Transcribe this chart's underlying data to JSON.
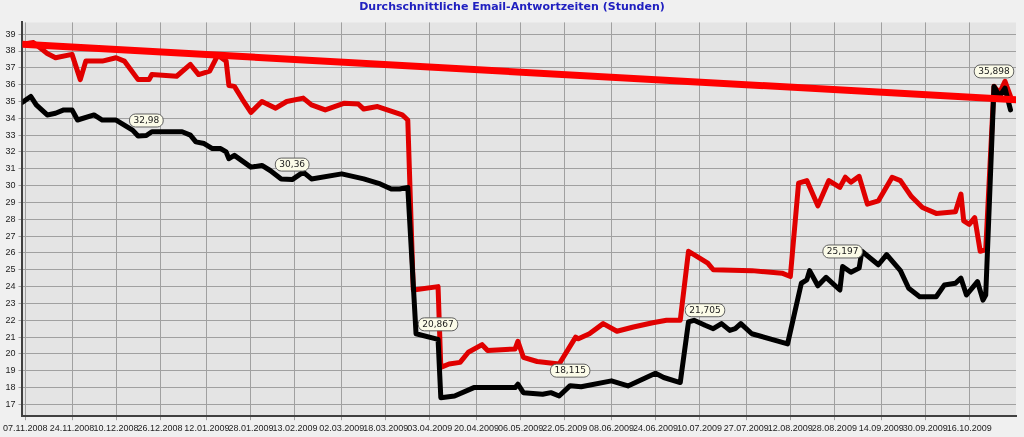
{
  "chart_data": {
    "type": "line",
    "title": "Durchschnittliche Email-Antwortzeiten (Stunden)",
    "xlim": [
      "2008-11-06",
      "2009-11-02"
    ],
    "ylim": [
      16.3,
      39.7
    ],
    "yticks": [
      17,
      18,
      19,
      20,
      21,
      22,
      23,
      24,
      25,
      26,
      27,
      28,
      29,
      30,
      31,
      32,
      33,
      34,
      35,
      36,
      37,
      38,
      39
    ],
    "xticks": [
      {
        "value": "2008-11-07",
        "label": "07.11.2008"
      },
      {
        "value": "2008-11-24",
        "label": "24.11.2008"
      },
      {
        "value": "2008-12-10",
        "label": "10.12.2008"
      },
      {
        "value": "2008-12-26",
        "label": "26.12.2008"
      },
      {
        "value": "2009-01-12",
        "label": "12.01.2009"
      },
      {
        "value": "2009-01-28",
        "label": "28.01.2009"
      },
      {
        "value": "2009-02-13",
        "label": "13.02.2009"
      },
      {
        "value": "2009-03-02",
        "label": "02.03.2009"
      },
      {
        "value": "2009-03-18",
        "label": "18.03.2009"
      },
      {
        "value": "2009-04-03",
        "label": "03.04.2009"
      },
      {
        "value": "2009-04-20",
        "label": "20.04.2009"
      },
      {
        "value": "2009-05-06",
        "label": "06.05.2009"
      },
      {
        "value": "2009-05-22",
        "label": "22.05.2009"
      },
      {
        "value": "2009-06-08",
        "label": "08.06.2009"
      },
      {
        "value": "2009-06-24",
        "label": "24.06.2009"
      },
      {
        "value": "2009-07-10",
        "label": "10.07.2009"
      },
      {
        "value": "2009-07-27",
        "label": "27.07.2009"
      },
      {
        "value": "2009-08-12",
        "label": "12.08.2009"
      },
      {
        "value": "2009-08-28",
        "label": "28.08.2009"
      },
      {
        "value": "2009-09-14",
        "label": "14.09.2009"
      },
      {
        "value": "2009-09-30",
        "label": "30.09.2009"
      },
      {
        "value": "2009-10-16",
        "label": "16.10.2009"
      }
    ],
    "grid": true,
    "legend": false,
    "marker": "none",
    "line_style": "solid",
    "series": [
      {
        "color": "#e00000",
        "x": [
          "2008-11-06",
          "2008-11-10",
          "2008-11-15",
          "2008-11-18",
          "2008-11-24",
          "2008-11-27",
          "2008-11-29",
          "2008-12-05",
          "2008-12-10",
          "2008-12-13",
          "2008-12-18",
          "2008-12-22",
          "2008-12-23",
          "2009-01-01",
          "2009-01-06",
          "2009-01-09",
          "2009-01-13",
          "2009-01-15",
          "2009-01-16",
          "2009-01-19",
          "2009-01-20",
          "2009-01-22",
          "2009-01-25",
          "2009-01-28",
          "2009-02-01",
          "2009-02-06",
          "2009-02-10",
          "2009-02-16",
          "2009-02-19",
          "2009-02-24",
          "2009-03-03",
          "2009-03-08",
          "2009-03-10",
          "2009-03-15",
          "2009-03-24",
          "2009-03-26",
          "2009-03-28",
          "2009-04-06",
          "2009-04-07",
          "2009-04-10",
          "2009-04-14",
          "2009-04-17",
          "2009-04-22",
          "2009-04-24",
          "2009-05-04",
          "2009-05-05",
          "2009-05-07",
          "2009-05-12",
          "2009-05-20",
          "2009-05-26",
          "2009-05-27",
          "2009-05-31",
          "2009-06-05",
          "2009-06-10",
          "2009-06-16",
          "2009-06-23",
          "2009-06-28",
          "2009-07-03",
          "2009-07-06",
          "2009-07-13",
          "2009-07-15",
          "2009-07-29",
          "2009-08-09",
          "2009-08-12",
          "2009-08-15",
          "2009-08-18",
          "2009-08-22",
          "2009-08-26",
          "2009-08-30",
          "2009-09-01",
          "2009-09-03",
          "2009-09-06",
          "2009-09-09",
          "2009-09-13",
          "2009-09-18",
          "2009-09-21",
          "2009-09-25",
          "2009-09-29",
          "2009-10-04",
          "2009-10-11",
          "2009-10-13",
          "2009-10-14",
          "2009-10-16",
          "2009-10-18",
          "2009-10-20",
          "2009-10-22",
          "2009-10-25",
          "2009-10-27",
          "2009-10-29",
          "2009-10-31"
        ],
        "values": [
          38.4,
          38.5,
          37.85,
          37.6,
          37.8,
          36.3,
          37.4,
          37.4,
          37.6,
          37.4,
          36.3,
          36.3,
          36.6,
          36.5,
          37.2,
          36.6,
          36.8,
          37.45,
          37.75,
          37.4,
          35.95,
          35.9,
          35.1,
          34.35,
          35.0,
          34.6,
          35.0,
          35.2,
          34.8,
          34.5,
          34.9,
          34.85,
          34.55,
          34.7,
          34.2,
          33.9,
          23.8,
          24.0,
          19.2,
          19.4,
          19.5,
          20.1,
          20.55,
          20.2,
          20.3,
          20.75,
          19.8,
          19.55,
          19.4,
          21.0,
          20.9,
          21.2,
          21.8,
          21.35,
          21.6,
          21.85,
          22.0,
          22.0,
          26.1,
          25.4,
          25.0,
          24.95,
          24.8,
          24.6,
          30.15,
          30.3,
          28.8,
          30.3,
          29.9,
          30.5,
          30.2,
          30.55,
          28.9,
          29.1,
          30.5,
          30.3,
          29.35,
          28.7,
          28.35,
          28.45,
          29.5,
          27.9,
          27.7,
          28.1,
          26.1,
          26.2,
          35.9,
          35.5,
          36.2,
          35.3
        ]
      },
      {
        "color": "#000000",
        "x": [
          "2008-11-06",
          "2008-11-09",
          "2008-11-11",
          "2008-11-15",
          "2008-11-18",
          "2008-11-21",
          "2008-11-24",
          "2008-11-26",
          "2008-12-02",
          "2008-12-05",
          "2008-12-10",
          "2008-12-16",
          "2008-12-18",
          "2008-12-21",
          "2008-12-23",
          "2009-01-03",
          "2009-01-06",
          "2009-01-08",
          "2009-01-11",
          "2009-01-14",
          "2009-01-17",
          "2009-01-19",
          "2009-01-20",
          "2009-01-22",
          "2009-01-28",
          "2009-02-01",
          "2009-02-04",
          "2009-02-08",
          "2009-02-12",
          "2009-02-16",
          "2009-02-19",
          "2009-03-02",
          "2009-03-10",
          "2009-03-16",
          "2009-03-20",
          "2009-03-23",
          "2009-03-26",
          "2009-03-29",
          "2009-04-06",
          "2009-04-07",
          "2009-04-12",
          "2009-04-19",
          "2009-05-04",
          "2009-05-05",
          "2009-05-07",
          "2009-05-14",
          "2009-05-17",
          "2009-05-20",
          "2009-05-24",
          "2009-05-28",
          "2009-06-08",
          "2009-06-14",
          "2009-06-24",
          "2009-06-27",
          "2009-07-03",
          "2009-07-06",
          "2009-07-08",
          "2009-07-12",
          "2009-07-15",
          "2009-07-18",
          "2009-07-21",
          "2009-07-23",
          "2009-07-25",
          "2009-07-29",
          "2009-08-11",
          "2009-08-16",
          "2009-08-18",
          "2009-08-19",
          "2009-08-22",
          "2009-08-25",
          "2009-08-30",
          "2009-08-31",
          "2009-09-03",
          "2009-09-06",
          "2009-09-07",
          "2009-09-13",
          "2009-09-16",
          "2009-09-21",
          "2009-09-24",
          "2009-09-28",
          "2009-10-04",
          "2009-10-07",
          "2009-10-11",
          "2009-10-13",
          "2009-10-15",
          "2009-10-19",
          "2009-10-21",
          "2009-10-22",
          "2009-10-25",
          "2009-10-27",
          "2009-10-29",
          "2009-10-31"
        ],
        "values": [
          34.95,
          35.3,
          34.8,
          34.2,
          34.3,
          34.5,
          34.5,
          33.9,
          34.2,
          33.9,
          33.9,
          33.3,
          32.95,
          32.98,
          33.2,
          33.2,
          33.0,
          32.6,
          32.5,
          32.2,
          32.2,
          32.0,
          31.6,
          31.8,
          31.1,
          31.2,
          30.9,
          30.4,
          30.36,
          30.8,
          30.4,
          30.7,
          30.4,
          30.1,
          29.8,
          29.8,
          29.9,
          21.2,
          20.867,
          17.4,
          17.5,
          18.0,
          18.0,
          18.2,
          17.7,
          17.6,
          17.7,
          17.5,
          18.115,
          18.05,
          18.4,
          18.1,
          18.85,
          18.6,
          18.3,
          21.9,
          22.0,
          21.705,
          21.5,
          21.8,
          21.4,
          21.5,
          21.8,
          21.2,
          20.6,
          24.2,
          24.4,
          24.95,
          24.05,
          24.55,
          23.8,
          25.197,
          24.85,
          25.1,
          26.1,
          25.3,
          25.9,
          24.95,
          23.9,
          23.4,
          23.4,
          24.1,
          24.2,
          24.5,
          23.5,
          24.3,
          23.2,
          23.5,
          35.898,
          35.3,
          35.8,
          34.5
        ]
      },
      {
        "type": "line",
        "color": "#ff0000",
        "x": [
          "2008-11-06",
          "2009-11-02"
        ],
        "values": [
          38.4,
          35.1
        ]
      }
    ],
    "annotations": [
      {
        "text": "32,98",
        "x": "2008-12-21",
        "y": 32.98
      },
      {
        "text": "30,36",
        "x": "2009-02-12",
        "y": 30.36
      },
      {
        "text": "20,867",
        "x": "2009-04-06",
        "y": 20.867
      },
      {
        "text": "18,115",
        "x": "2009-05-24",
        "y": 18.115
      },
      {
        "text": "21,705",
        "x": "2009-07-12",
        "y": 21.705
      },
      {
        "text": "25,197",
        "x": "2009-08-31",
        "y": 25.197
      },
      {
        "text": "35,898",
        "x": "2009-10-25",
        "y": 35.898
      }
    ]
  }
}
